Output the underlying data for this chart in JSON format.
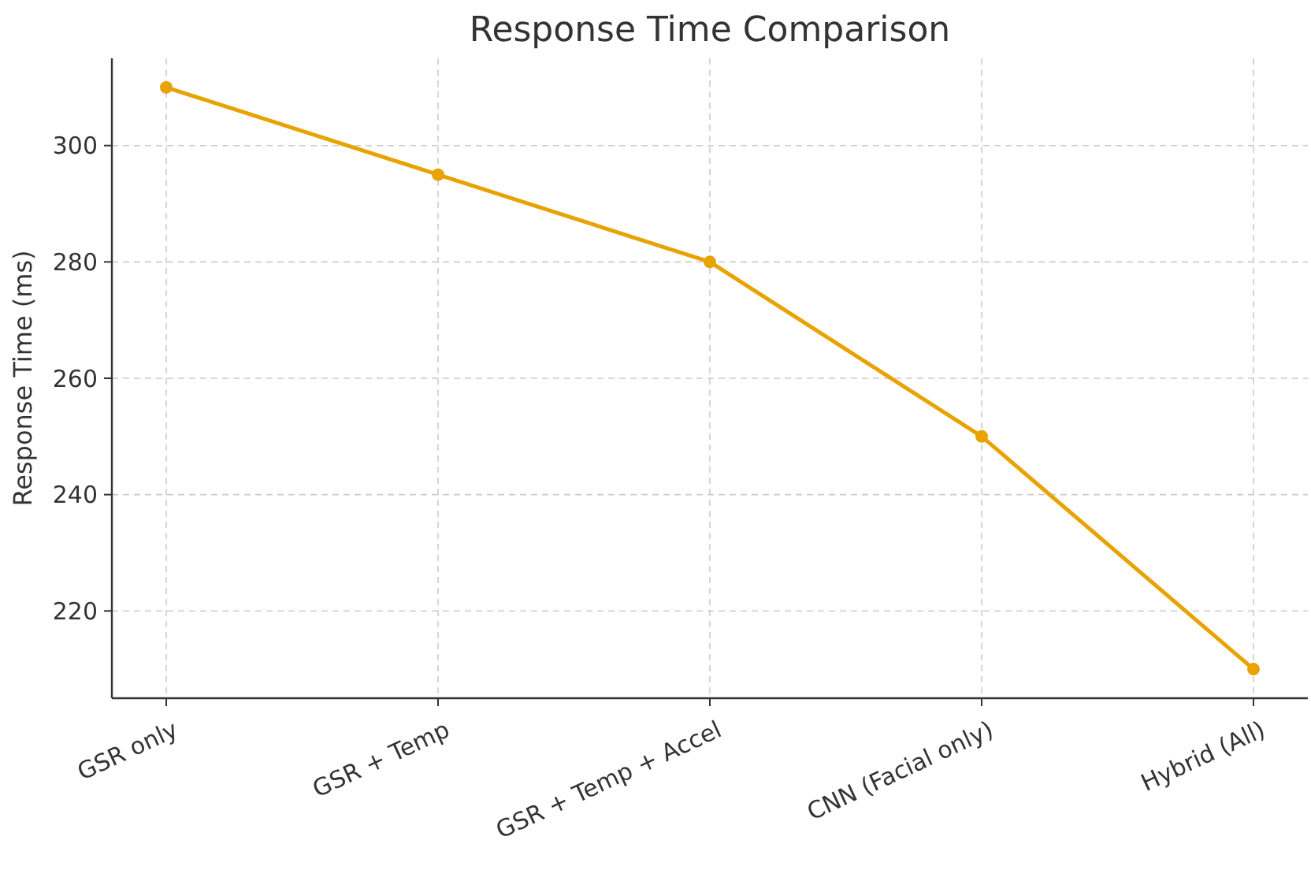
{
  "chart_data": {
    "type": "line",
    "title": "Response Time Comparison",
    "ylabel": "Response Time (ms)",
    "categories": [
      "GSR only",
      "GSR + Temp",
      "GSR + Temp + Accel",
      "CNN (Facial only)",
      "Hybrid (All)"
    ],
    "series": [
      {
        "color": "#e8a202",
        "values": [
          310,
          295,
          280,
          250,
          210
        ]
      }
    ],
    "ylim": [
      205,
      315
    ],
    "yticks": [
      220,
      240,
      260,
      280,
      300
    ],
    "grid": true,
    "marker": "circle",
    "line_style": "solid"
  }
}
